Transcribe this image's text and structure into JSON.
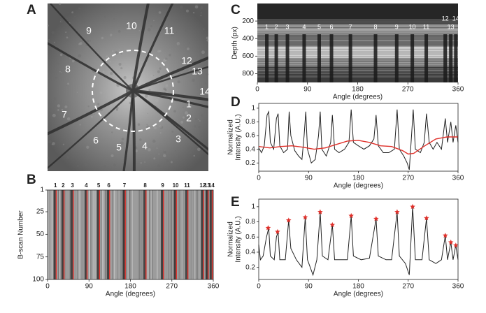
{
  "chart_data": [
    {
      "type": "image",
      "panel": "A",
      "labels": [
        "1",
        "2",
        "3",
        "4",
        "5",
        "6",
        "7",
        "8",
        "9",
        "10",
        "11",
        "12",
        "13",
        "14"
      ]
    },
    {
      "type": "heatmap",
      "panel": "B",
      "ylabel": "B-scan Number",
      "xlabel": "Angle (degrees)",
      "xlim": [
        0,
        360
      ],
      "xticks": [
        0,
        90,
        180,
        270,
        360
      ],
      "ylim": [
        100,
        1
      ],
      "yticks": [
        1,
        25,
        50,
        75,
        100
      ],
      "vessel_labels": [
        "1",
        "2",
        "3",
        "4",
        "5",
        "6",
        "7",
        "8",
        "9",
        "10",
        "11",
        "12",
        "13",
        "14"
      ],
      "vessel_angles": [
        17,
        34,
        54,
        84,
        111,
        133,
        167,
        212,
        250,
        278,
        303,
        337,
        347,
        356
      ],
      "color": "#e0302a"
    },
    {
      "type": "image",
      "panel": "C",
      "ylabel": "Depth (px)",
      "xlabel": "Angle (degrees)",
      "xlim": [
        0,
        360
      ],
      "xticks": [
        0,
        90,
        180,
        270,
        360
      ],
      "ylim": [
        900,
        0
      ],
      "yticks": [
        200,
        400,
        600,
        800
      ],
      "vessel_labels": [
        "1",
        "2",
        "3",
        "4",
        "5",
        "6",
        "7",
        "8",
        "9",
        "10",
        "11",
        "12",
        "13",
        "14"
      ],
      "vessel_angles": [
        17,
        34,
        54,
        84,
        111,
        133,
        167,
        212,
        250,
        278,
        303,
        337,
        347,
        356
      ]
    },
    {
      "type": "line",
      "panel": "D",
      "ylabel": [
        "Normalized",
        "Intensity (A.U.)"
      ],
      "xlabel": "Angle (degrees)",
      "xlim": [
        0,
        360
      ],
      "xticks": [
        0,
        90,
        180,
        270,
        360
      ],
      "ylim": [
        0.08,
        1.07
      ],
      "yticks": [
        0.2,
        0.4,
        0.6,
        0.8,
        1
      ],
      "series": [
        {
          "color": "#222222",
          "x": [
            0,
            5,
            10,
            15,
            18,
            21,
            27,
            32,
            35,
            38,
            45,
            52,
            55,
            58,
            65,
            72,
            78,
            82,
            85,
            88,
            95,
            102,
            108,
            111,
            114,
            122,
            130,
            133,
            137,
            145,
            155,
            163,
            167,
            171,
            180,
            190,
            200,
            208,
            212,
            216,
            225,
            235,
            245,
            250,
            254,
            262,
            268,
            272,
            276,
            279,
            283,
            292,
            299,
            303,
            308,
            315,
            322,
            330,
            337,
            341,
            347,
            351,
            356,
            360
          ],
          "values": [
            0.42,
            0.35,
            0.45,
            0.9,
            0.95,
            0.5,
            0.4,
            0.85,
            0.92,
            0.45,
            0.35,
            0.4,
            0.95,
            0.6,
            0.38,
            0.3,
            0.25,
            0.6,
            0.95,
            0.4,
            0.2,
            0.25,
            0.6,
            0.95,
            0.4,
            0.3,
            0.5,
            0.9,
            0.4,
            0.35,
            0.4,
            0.5,
            0.98,
            0.5,
            0.45,
            0.4,
            0.45,
            0.55,
            0.9,
            0.45,
            0.35,
            0.35,
            0.4,
            0.98,
            0.4,
            0.3,
            0.2,
            0.1,
            0.6,
            0.98,
            0.4,
            0.35,
            0.5,
            0.92,
            0.5,
            0.4,
            0.5,
            0.4,
            0.85,
            0.5,
            0.8,
            0.5,
            0.75,
            0.5
          ]
        },
        {
          "color": "#e0302a",
          "x": [
            0,
            20,
            40,
            60,
            80,
            100,
            120,
            140,
            160,
            180,
            200,
            220,
            240,
            260,
            270,
            280,
            300,
            320,
            340,
            360
          ],
          "values": [
            0.44,
            0.42,
            0.44,
            0.45,
            0.43,
            0.4,
            0.42,
            0.47,
            0.52,
            0.53,
            0.5,
            0.45,
            0.44,
            0.38,
            0.33,
            0.34,
            0.45,
            0.55,
            0.58,
            0.58
          ]
        }
      ]
    },
    {
      "type": "line",
      "panel": "E",
      "ylabel": [
        "Normalized",
        "Intensity (A.U.)"
      ],
      "xlabel": "Angle (degrees)",
      "xlim": [
        0,
        360
      ],
      "xticks": [
        0,
        90,
        180,
        270,
        360
      ],
      "ylim": [
        0.04,
        1.1
      ],
      "yticks": [
        0.2,
        0.4,
        0.6,
        0.8,
        1
      ],
      "series": [
        {
          "color": "#222222",
          "x": [
            0,
            3,
            8,
            14,
            18,
            21,
            28,
            32,
            35,
            38,
            48,
            54,
            58,
            68,
            78,
            84,
            88,
            98,
            105,
            111,
            115,
            125,
            133,
            137,
            150,
            160,
            167,
            171,
            185,
            200,
            212,
            216,
            230,
            240,
            250,
            254,
            265,
            272,
            278,
            283,
            295,
            303,
            308,
            320,
            330,
            337,
            341,
            347,
            351,
            356,
            360
          ],
          "values": [
            0.5,
            0.3,
            0.35,
            0.6,
            0.72,
            0.35,
            0.3,
            0.6,
            0.67,
            0.3,
            0.3,
            0.82,
            0.45,
            0.3,
            0.2,
            0.86,
            0.3,
            0.1,
            0.3,
            0.93,
            0.35,
            0.3,
            0.76,
            0.3,
            0.3,
            0.3,
            0.88,
            0.35,
            0.3,
            0.32,
            0.84,
            0.35,
            0.3,
            0.3,
            0.93,
            0.35,
            0.25,
            0.1,
            1.0,
            0.3,
            0.3,
            0.85,
            0.3,
            0.25,
            0.3,
            0.62,
            0.3,
            0.53,
            0.3,
            0.49,
            0.3
          ]
        },
        {
          "color": "#e0302a",
          "marker": "star",
          "x": [
            17,
            34,
            54,
            84,
            111,
            133,
            167,
            212,
            250,
            278,
            303,
            337,
            347,
            356
          ],
          "values": [
            0.72,
            0.67,
            0.82,
            0.86,
            0.93,
            0.76,
            0.88,
            0.84,
            0.93,
            1.0,
            0.85,
            0.62,
            0.53,
            0.49
          ]
        }
      ]
    }
  ]
}
